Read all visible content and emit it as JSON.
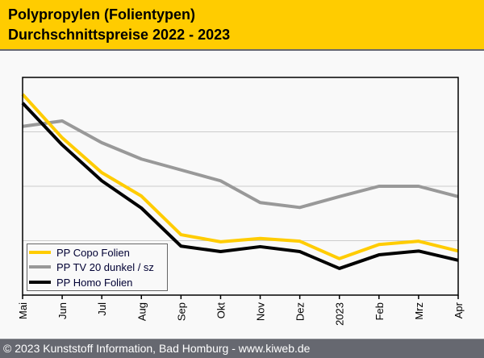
{
  "header": {
    "title_line1": "Polypropylen (Folientypen)",
    "title_line2": "Durchschnittspreise 2022 - 2023"
  },
  "footer": {
    "text": "© 2023 Kunststoff Information, Bad Homburg - www.kiweb.de"
  },
  "colors": {
    "header_bg": "#ffcc00",
    "footer_bg": "#666870",
    "copo": "#ffcc00",
    "tv20": "#999999",
    "homo": "#000000",
    "grid": "#cccccc"
  },
  "chart_data": {
    "type": "line",
    "title": "Polypropylen (Folientypen) Durchschnittspreise 2022 - 2023",
    "xlabel": "",
    "ylabel": "",
    "categories": [
      "Mai",
      "Jun",
      "Jul",
      "Aug",
      "Sep",
      "Okt",
      "Nov",
      "Dez",
      "2023",
      "Feb",
      "Mrz",
      "Apr"
    ],
    "ylim": [
      0,
      400
    ],
    "y_ticks_unlabeled": [
      100,
      200,
      300
    ],
    "grid": true,
    "legend_position": "bottom-left",
    "series": [
      {
        "name": "PP Copo Folien",
        "color": "#ffcc00",
        "values": [
          369,
          289,
          225,
          182,
          111,
          98,
          104,
          99,
          67,
          93,
          99,
          81
        ]
      },
      {
        "name": "PP TV 20 dunkel / sz",
        "color": "#999999",
        "values": [
          310,
          320,
          280,
          250,
          230,
          210,
          170,
          161,
          181,
          200,
          200,
          181
        ]
      },
      {
        "name": "PP Homo Folien",
        "color": "#000000",
        "values": [
          353,
          276,
          210,
          160,
          90,
          80,
          89,
          80,
          49,
          74,
          81,
          64
        ]
      }
    ]
  }
}
